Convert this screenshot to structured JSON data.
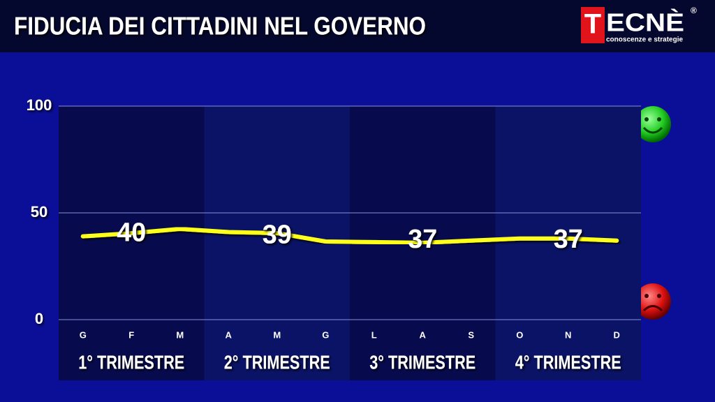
{
  "header": {
    "title": "FIDUCIA DEI CITTADINI NEL GOVERNO",
    "logo": {
      "initial": "T",
      "name": "ECNÈ",
      "registered": "®",
      "tagline": "conoscenze e strategie"
    }
  },
  "chart_data": {
    "type": "line",
    "categories": [
      "G",
      "F",
      "M",
      "A",
      "M",
      "G",
      "L",
      "A",
      "S",
      "O",
      "N",
      "D"
    ],
    "values": [
      39,
      40.5,
      42.5,
      41,
      40.5,
      36.6,
      36.3,
      36,
      37,
      38,
      38,
      37
    ],
    "color": "#ffff1a",
    "quarters": [
      {
        "label": "1° TRIMESTRE",
        "value": 40
      },
      {
        "label": "2° TRIMESTRE",
        "value": 39
      },
      {
        "label": "3° TRIMESTRE",
        "value": 37
      },
      {
        "label": "4° TRIMESTRE",
        "value": 37
      }
    ],
    "ylim": [
      0,
      100
    ],
    "yticks": [
      0,
      50,
      100
    ],
    "grid": true
  }
}
